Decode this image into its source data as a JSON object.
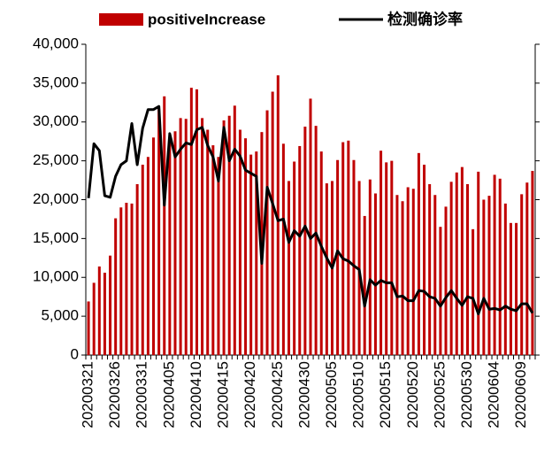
{
  "chart_data": {
    "type": "bar",
    "categories": [
      "20200321",
      null,
      null,
      null,
      null,
      "20200326",
      null,
      null,
      null,
      null,
      "20200331",
      null,
      null,
      null,
      null,
      "20200405",
      null,
      null,
      null,
      null,
      "20200410",
      null,
      null,
      null,
      null,
      "20200415",
      null,
      null,
      null,
      null,
      "20200420",
      null,
      null,
      null,
      null,
      "20200425",
      null,
      null,
      null,
      null,
      "20200430",
      null,
      null,
      null,
      null,
      "20200505",
      null,
      null,
      null,
      null,
      "20200510",
      null,
      null,
      null,
      null,
      "20200515",
      null,
      null,
      null,
      null,
      "20200520",
      null,
      null,
      null,
      null,
      "20200525",
      null,
      null,
      null,
      null,
      "20200530",
      null,
      null,
      null,
      null,
      "20200604",
      null,
      null,
      null,
      null,
      "20200609",
      null,
      null
    ],
    "series": [
      {
        "name": "positiveIncrease",
        "type": "bar",
        "color": "#c00000",
        "values": [
          6900,
          9300,
          11400,
          10600,
          12800,
          17600,
          19000,
          19600,
          19500,
          22000,
          24500,
          25500,
          28000,
          31700,
          33300,
          28000,
          28800,
          30500,
          30400,
          34400,
          34200,
          30500,
          29000,
          27000,
          25500,
          30200,
          30800,
          32100,
          29000,
          27900,
          25800,
          26200,
          28700,
          31500,
          33900,
          36000,
          27200,
          22400,
          24900,
          26900,
          29400,
          33000,
          29500,
          26200,
          22100,
          22400,
          25100,
          27400,
          27600,
          25100,
          22400,
          17900,
          22600,
          20800,
          26300,
          24800,
          25000,
          20600,
          19800,
          21600,
          21400,
          26000,
          24500,
          22000,
          20600,
          16500,
          19100,
          22300,
          23500,
          24200,
          22000,
          16200,
          23600,
          20000,
          20500,
          23200,
          22700,
          19500,
          17000,
          17000,
          20700,
          22200,
          23700
        ]
      },
      {
        "name": "检测确诊率",
        "type": "line",
        "color": "#000000",
        "values": [
          20200,
          27200,
          26300,
          20500,
          20300,
          23000,
          24500,
          25000,
          29800,
          24500,
          29200,
          31600,
          31600,
          32000,
          19300,
          28500,
          25500,
          26500,
          27300,
          27100,
          29000,
          29300,
          27000,
          25500,
          22400,
          29300,
          25000,
          26500,
          25600,
          23800,
          23400,
          23000,
          11800,
          21600,
          19500,
          17300,
          17500,
          14500,
          16000,
          15300,
          16600,
          15000,
          15700,
          14000,
          12500,
          11200,
          13400,
          12400,
          12100,
          11500,
          11000,
          6300,
          9700,
          9000,
          9600,
          9300,
          9300,
          7500,
          7600,
          7000,
          7000,
          8300,
          8200,
          7500,
          7300,
          6300,
          7400,
          8300,
          7300,
          6400,
          7500,
          7300,
          5300,
          7300,
          5900,
          6000,
          5800,
          6300,
          5900,
          5700,
          6600,
          6600,
          5400
        ]
      }
    ],
    "ylim": [
      0,
      40000
    ],
    "yticks": [
      0,
      {
        "value": 5000,
        "label": "5,000"
      },
      {
        "value": 10000,
        "label": "10,000"
      },
      {
        "value": 15000,
        "label": "15,000"
      },
      {
        "value": 20000,
        "label": "20,000"
      },
      {
        "value": 25000,
        "label": "25,000"
      },
      {
        "value": 30000,
        "label": "30,000"
      },
      {
        "value": 35000,
        "label": "35,000"
      },
      {
        "value": 40000,
        "label": "40,000"
      }
    ],
    "grid": false,
    "legend": "top"
  }
}
